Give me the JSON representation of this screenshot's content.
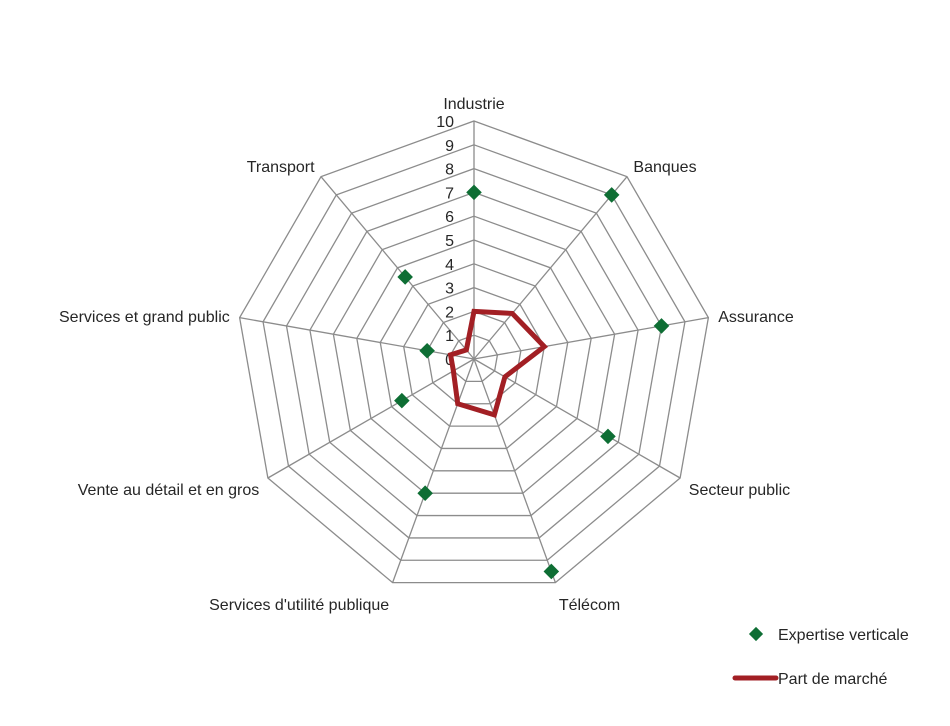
{
  "chart_data": {
    "type": "radar",
    "categories": [
      "Industrie",
      "Banques",
      "Assurance",
      "Secteur public",
      "Télécom",
      "Services d'utilité publique",
      "Vente au détail et en gros",
      "Services et grand public",
      "Transport"
    ],
    "rlim": [
      0,
      10
    ],
    "ticks": [
      "0",
      "1",
      "2",
      "3",
      "4",
      "5",
      "6",
      "7",
      "8",
      "9",
      "10"
    ],
    "series": [
      {
        "name": "Expertise verticale",
        "style": "markers",
        "color": "#0e6e34",
        "values": [
          7,
          9,
          8,
          6.5,
          9.5,
          6,
          3.5,
          2,
          4.5
        ]
      },
      {
        "name": "Part de marché",
        "style": "line",
        "color": "#a21f24",
        "values": [
          2,
          2.5,
          3,
          1.5,
          2.5,
          2,
          1,
          1,
          0.5
        ]
      }
    ],
    "legend_position": "bottom-right",
    "grid": true
  }
}
